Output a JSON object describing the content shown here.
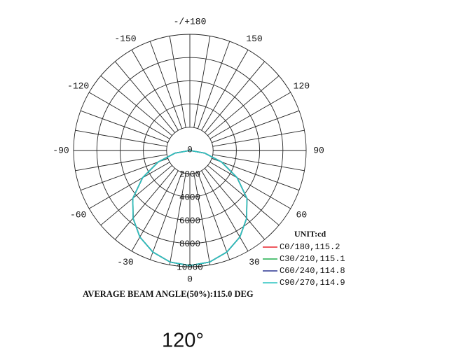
{
  "chart_data": {
    "type": "polar",
    "note": "AVERAGE BEAM ANGLE(50%):115.0 DEG",
    "unit_label": "UNIT:cd",
    "theta": [
      -90,
      -80,
      -70,
      -60,
      -50,
      -40,
      -30,
      -20,
      -10,
      0,
      10,
      20,
      30,
      40,
      50,
      60,
      70,
      80,
      90
    ],
    "series": [
      {
        "name": "C0/180,115.2",
        "color": "#e8202a",
        "values": [
          0,
          1300,
          2900,
          4700,
          6400,
          7600,
          8600,
          9300,
          9750,
          9900,
          9750,
          9300,
          8600,
          7600,
          6400,
          4700,
          2900,
          1300,
          0
        ]
      },
      {
        "name": "C30/210,115.1",
        "color": "#1fae4b",
        "values": [
          0,
          1300,
          2900,
          4700,
          6400,
          7600,
          8600,
          9300,
          9750,
          9900,
          9750,
          9300,
          8600,
          7600,
          6400,
          4700,
          2900,
          1300,
          0
        ]
      },
      {
        "name": "C60/240,114.8",
        "color": "#2a3390",
        "values": [
          0,
          1300,
          2900,
          4700,
          6400,
          7600,
          8600,
          9300,
          9750,
          9900,
          9750,
          9300,
          8600,
          7600,
          6400,
          4700,
          2900,
          1300,
          0
        ]
      },
      {
        "name": "C90/270,114.9",
        "color": "#2cc4c0",
        "values": [
          0,
          1300,
          2900,
          4700,
          6400,
          7600,
          8600,
          9300,
          9750,
          9900,
          9750,
          9300,
          8600,
          7600,
          6400,
          4700,
          2900,
          1300,
          0
        ]
      }
    ],
    "rlim": [
      0,
      10000
    ],
    "rticks": [
      0,
      2000,
      4000,
      6000,
      8000,
      10000
    ],
    "thetaticks": [
      -150,
      -120,
      -90,
      -60,
      -30,
      0,
      30,
      60,
      90,
      120,
      150,
      {
        "value": 180,
        "label": "-/+180"
      }
    ],
    "theta_grid_step": 10
  },
  "caption": "120°"
}
